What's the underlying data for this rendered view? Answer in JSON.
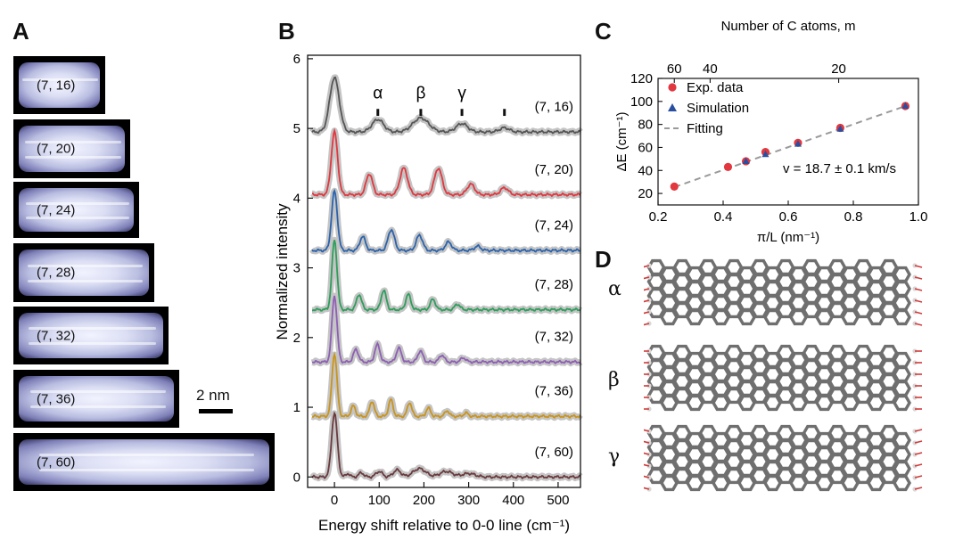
{
  "panels": {
    "a_letter": "A",
    "b_letter": "B",
    "c_letter": "C",
    "d_letter": "D"
  },
  "stm_images": [
    {
      "label": "(7, 16)"
    },
    {
      "label": "(7, 20)"
    },
    {
      "label": "(7, 24)"
    },
    {
      "label": "(7, 28)"
    },
    {
      "label": "(7, 32)"
    },
    {
      "label": "(7, 36)"
    },
    {
      "label": "(7, 60)"
    }
  ],
  "scale_bar_label": "2 nm",
  "chart_data": [
    {
      "id": "B",
      "type": "line",
      "xlabel": "Energy shift relative to 0-0 line (cm⁻¹)",
      "ylabel": "Normalized intensity",
      "xlim": [
        -60,
        550
      ],
      "ylim": [
        -0.15,
        6.05
      ],
      "xticks": [
        0,
        100,
        200,
        300,
        400,
        500
      ],
      "yticks": [
        0,
        1,
        2,
        3,
        4,
        5,
        6
      ],
      "peak_markers": [
        {
          "label": "α",
          "x": 97
        },
        {
          "label": "β",
          "x": 193
        },
        {
          "label": "γ",
          "x": 285
        },
        {
          "label": "",
          "x": 380
        }
      ],
      "series": [
        {
          "label": "(7, 16)",
          "color": "#555555",
          "offset": 4.95,
          "peaks": [
            [
              0,
              0.78,
              15
            ],
            [
              97,
              0.18,
              18
            ],
            [
              193,
              0.2,
              25
            ],
            [
              285,
              0.12,
              18
            ],
            [
              380,
              0.06,
              15
            ]
          ]
        },
        {
          "label": "(7, 20)",
          "color": "#e2373e",
          "offset": 4.05,
          "peaks": [
            [
              0,
              0.9,
              10
            ],
            [
              78,
              0.3,
              10
            ],
            [
              155,
              0.38,
              12
            ],
            [
              232,
              0.38,
              12
            ],
            [
              305,
              0.15,
              12
            ],
            [
              380,
              0.1,
              12
            ]
          ]
        },
        {
          "label": "(7, 24)",
          "color": "#2a63ad",
          "offset": 3.25,
          "peaks": [
            [
              0,
              0.85,
              9
            ],
            [
              63,
              0.2,
              9
            ],
            [
              127,
              0.3,
              10
            ],
            [
              190,
              0.22,
              10
            ],
            [
              255,
              0.12,
              10
            ],
            [
              320,
              0.06,
              10
            ]
          ]
        },
        {
          "label": "(7, 28)",
          "color": "#2e9e5b",
          "offset": 2.4,
          "peaks": [
            [
              0,
              1.0,
              8
            ],
            [
              55,
              0.22,
              8
            ],
            [
              110,
              0.28,
              8
            ],
            [
              165,
              0.22,
              8
            ],
            [
              220,
              0.15,
              8
            ],
            [
              275,
              0.08,
              8
            ]
          ]
        },
        {
          "label": "(7, 32)",
          "color": "#8e5fb5",
          "offset": 1.65,
          "peaks": [
            [
              0,
              0.95,
              8
            ],
            [
              48,
              0.18,
              8
            ],
            [
              96,
              0.25,
              8
            ],
            [
              144,
              0.2,
              8
            ],
            [
              192,
              0.16,
              8
            ],
            [
              240,
              0.1,
              8
            ],
            [
              288,
              0.06,
              8
            ]
          ]
        },
        {
          "label": "(7, 36)",
          "color": "#c9941c",
          "offset": 0.87,
          "peaks": [
            [
              0,
              0.9,
              8
            ],
            [
              42,
              0.15,
              7
            ],
            [
              84,
              0.22,
              7
            ],
            [
              126,
              0.24,
              7
            ],
            [
              168,
              0.2,
              7
            ],
            [
              210,
              0.12,
              7
            ],
            [
              252,
              0.08,
              7
            ],
            [
              294,
              0.05,
              7
            ]
          ]
        },
        {
          "label": "(7, 60)",
          "color": "#6b3a3e",
          "offset": 0.0,
          "peaks": [
            [
              0,
              0.92,
              9
            ],
            [
              30,
              0.05,
              6
            ],
            [
              60,
              0.06,
              8
            ],
            [
              100,
              0.08,
              10
            ],
            [
              140,
              0.1,
              12
            ],
            [
              190,
              0.12,
              20
            ],
            [
              250,
              0.08,
              20
            ],
            [
              300,
              0.05,
              20
            ]
          ]
        }
      ]
    },
    {
      "id": "C",
      "type": "scatter",
      "xlabel": "π/L (nm⁻¹)",
      "ylabel": "ΔE (cm⁻¹)",
      "top_xlabel": "Number of C atoms, m",
      "xlim": [
        0.2,
        1.0
      ],
      "ylim": [
        10,
        120
      ],
      "xticks": [
        0.2,
        0.4,
        0.6,
        0.8,
        1.0
      ],
      "xtick_labels": [
        "0.2",
        "0.4",
        "0.6",
        "0.8",
        "1.0"
      ],
      "yticks": [
        20,
        40,
        60,
        80,
        100,
        120
      ],
      "top_ticks": [
        {
          "label": "60",
          "x": 0.25
        },
        {
          "label": "40",
          "x": 0.36
        },
        {
          "label": "20",
          "x": 0.755
        }
      ],
      "annotation": "v = 18.7 ± 0.1 km/s",
      "legend_placement": "top-left",
      "legend": [
        {
          "label": "Exp. data",
          "marker": "circle",
          "color": "#e2373e"
        },
        {
          "label": "Simulation",
          "marker": "triangle",
          "color": "#2a4fa0"
        },
        {
          "label": "Fitting",
          "marker": "dash",
          "color": "#9a9a9a"
        }
      ],
      "exp_points": [
        [
          0.25,
          26
        ],
        [
          0.415,
          43
        ],
        [
          0.47,
          48
        ],
        [
          0.53,
          56
        ],
        [
          0.63,
          64
        ],
        [
          0.76,
          77
        ],
        [
          0.96,
          96
        ]
      ],
      "sim_points": [
        [
          0.47,
          48
        ],
        [
          0.53,
          54
        ],
        [
          0.63,
          63
        ],
        [
          0.76,
          76
        ],
        [
          0.96,
          96
        ]
      ],
      "fit_line": [
        [
          0.25,
          25.5
        ],
        [
          0.97,
          97
        ]
      ]
    }
  ],
  "panel_d": {
    "modes": [
      {
        "label": "α"
      },
      {
        "label": "β"
      },
      {
        "label": "γ"
      }
    ]
  }
}
